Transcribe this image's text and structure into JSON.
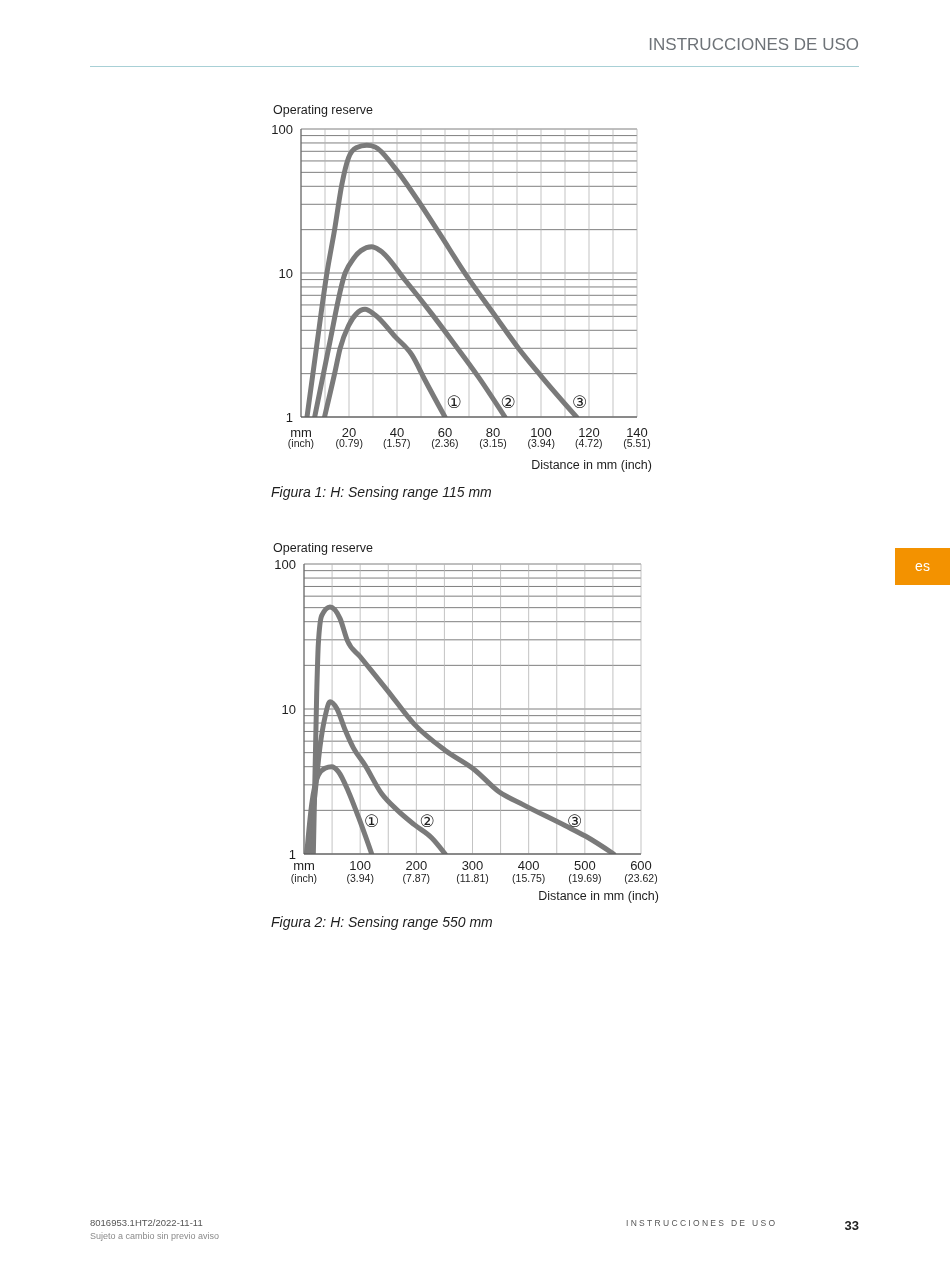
{
  "chart_data": [
    {
      "type": "line",
      "title": "Figura 1: H: Sensing range 115 mm",
      "xlabel": "Distance in mm (inch)",
      "ylabel": "Operating reserve",
      "log": true,
      "grid": true,
      "line_style": "solid",
      "xlim": [
        0,
        140
      ],
      "xticks": [
        {
          "value": 0,
          "label": "mm"
        },
        {
          "value": 10,
          "label": null
        },
        20,
        {
          "value": 30,
          "label": null
        },
        40,
        {
          "value": 50,
          "label": null
        },
        60,
        {
          "value": 70,
          "label": null
        },
        80,
        {
          "value": 90,
          "label": null
        },
        100,
        {
          "value": 110,
          "label": null
        },
        120,
        {
          "value": 130,
          "label": null
        },
        140
      ],
      "x2lim": [
        0,
        5.51
      ],
      "x2ticks": [
        {
          "value": 0,
          "label": "(inch)"
        },
        {
          "value": 0.79,
          "label": "(0.79)"
        },
        {
          "value": 1.57,
          "label": "(1.57)"
        },
        {
          "value": 2.36,
          "label": "(2.36)"
        },
        {
          "value": 3.15,
          "label": "(3.15)"
        },
        {
          "value": 3.94,
          "label": "(3.94)"
        },
        {
          "value": 4.72,
          "label": "(4.72)"
        },
        {
          "value": 5.51,
          "label": "(5.51)"
        }
      ],
      "ylim": [
        1,
        100
      ],
      "yticks": [
        1,
        {
          "value": 2,
          "label": null
        },
        {
          "value": 3,
          "label": null
        },
        {
          "value": 4,
          "label": null
        },
        {
          "value": 5,
          "label": null
        },
        {
          "value": 6,
          "label": null
        },
        {
          "value": 7,
          "label": null
        },
        {
          "value": 8,
          "label": null
        },
        {
          "value": 9,
          "label": null
        },
        10,
        {
          "value": 20,
          "label": null
        },
        {
          "value": 30,
          "label": null
        },
        {
          "value": 40,
          "label": null
        },
        {
          "value": 50,
          "label": null
        },
        {
          "value": 60,
          "label": null
        },
        {
          "value": 70,
          "label": null
        },
        {
          "value": 80,
          "label": null
        },
        {
          "value": 90,
          "label": null
        },
        100
      ],
      "series": [
        {
          "name": "①",
          "color": "#7a7a7a",
          "x": [
            9.8,
            14,
            16.3,
            19.8,
            23,
            26.7,
            30.9,
            39.3,
            46.2,
            51.7,
            60
          ],
          "values": [
            1,
            2,
            3,
            4.3,
            5.2,
            5.6,
            5.1,
            3.6,
            2.7,
            1.8,
            1
          ]
        },
        {
          "name": "②",
          "color": "#7a7a7a",
          "x": [
            5.7,
            11.5,
            18.4,
            21.9,
            25,
            29.5,
            33,
            43.4,
            54.5,
            62.8,
            73.9,
            85
          ],
          "values": [
            1,
            3,
            10,
            12.6,
            14.3,
            15.2,
            14.3,
            8.9,
            5.2,
            3.4,
            1.9,
            1
          ]
        },
        {
          "name": "③",
          "color": "#7a7a7a",
          "x": [
            2.5,
            6.4,
            10.8,
            14,
            17,
            19.8,
            23,
            27.4,
            30.9,
            38.6,
            47.6,
            57.3,
            68.4,
            82.2,
            90.6,
            100.3,
            114.8
          ],
          "values": [
            1,
            3,
            10,
            20,
            41,
            63,
            74,
            77,
            75,
            55,
            34,
            19.3,
            9.9,
            4.7,
            3,
            1.9,
            1
          ]
        }
      ],
      "annotations": [
        "INSTRUCCIONES DE USO",
        "es"
      ]
    },
    {
      "type": "line",
      "title": "Figura 2: H: Sensing range 550 mm",
      "xlabel": "Distance in mm (inch)",
      "ylabel": "Operating reserve",
      "log": true,
      "grid": true,
      "line_style": "solid",
      "xlim": [
        0,
        600
      ],
      "xticks": [
        {
          "value": 0,
          "label": "mm"
        },
        {
          "value": 50,
          "label": null
        },
        100,
        {
          "value": 150,
          "label": null
        },
        200,
        {
          "value": 250,
          "label": null
        },
        300,
        {
          "value": 350,
          "label": null
        },
        400,
        {
          "value": 450,
          "label": null
        },
        500,
        {
          "value": 550,
          "label": null
        },
        600
      ],
      "x2lim": [
        0,
        23.62
      ],
      "x2ticks": [
        {
          "value": 0,
          "label": "(inch)"
        },
        {
          "value": 3.94,
          "label": "(3.94)"
        },
        {
          "value": 7.87,
          "label": "(7.87)"
        },
        {
          "value": 11.81,
          "label": "(11.81)"
        },
        {
          "value": 15.75,
          "label": "(15.75)"
        },
        {
          "value": 19.69,
          "label": "(19.69)"
        },
        {
          "value": 23.62,
          "label": "(23.62)"
        }
      ],
      "ylim": [
        1,
        100
      ],
      "yticks": [
        1,
        {
          "value": 2,
          "label": null
        },
        {
          "value": 3,
          "label": null
        },
        {
          "value": 4,
          "label": null
        },
        {
          "value": 5,
          "label": null
        },
        {
          "value": 6,
          "label": null
        },
        {
          "value": 7,
          "label": null
        },
        {
          "value": 8,
          "label": null
        },
        {
          "value": 9,
          "label": null
        },
        10,
        {
          "value": 20,
          "label": null
        },
        {
          "value": 30,
          "label": null
        },
        {
          "value": 40,
          "label": null
        },
        {
          "value": 50,
          "label": null
        },
        {
          "value": 60,
          "label": null
        },
        {
          "value": 70,
          "label": null
        },
        {
          "value": 80,
          "label": null
        },
        {
          "value": 90,
          "label": null
        },
        100
      ],
      "series": [
        {
          "name": "①",
          "color": "#7a7a7a",
          "x": [
            4.8,
            13.7,
            25.5,
            37.4,
            49.3,
            61.2,
            79,
            96.9,
            120.6
          ],
          "values": [
            1,
            2.2,
            3.5,
            3.9,
            4,
            3.7,
            2.7,
            1.8,
            1
          ]
        },
        {
          "name": "②",
          "color": "#7a7a7a",
          "x": [
            7.7,
            19.6,
            28.5,
            37.4,
            46.3,
            58.2,
            73.1,
            87.9,
            108.6,
            138.4,
            166.5,
            195.8,
            227.6,
            251.3
          ],
          "values": [
            1,
            2.6,
            5.5,
            8.8,
            11.2,
            10.1,
            7.2,
            5.4,
            4.1,
            2.6,
            2,
            1.6,
            1.29,
            1
          ]
        },
        {
          "name": "③",
          "color": "#7a7a7a",
          "x": [
            16.6,
            22.6,
            25.5,
            31.5,
            46.3,
            64.2,
            77.4,
            99.7,
            148.7,
            195.8,
            251,
            304,
            346.4,
            389,
            464.7,
            500.9,
            551.4
          ],
          "values": [
            1,
            12.8,
            28,
            44,
            50.5,
            42,
            29.5,
            23,
            13.4,
            7.9,
            5.2,
            3.8,
            2.7,
            2.2,
            1.57,
            1.33,
            1
          ]
        }
      ],
      "annotations": [
        "8016953.1HT2/2022-11-11",
        "Sujeto a cambio sin previo aviso",
        "INSTRUCCIONES DE USO",
        "33"
      ]
    }
  ]
}
